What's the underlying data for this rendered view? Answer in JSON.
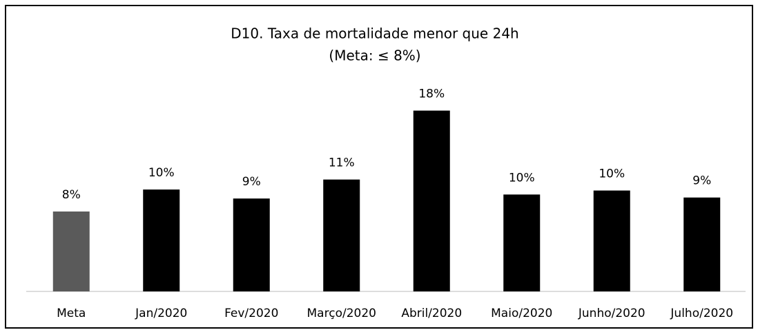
{
  "chart_data": {
    "type": "bar",
    "title": "D10. Taxa de mortalidade menor que 24h",
    "subtitle": "(Meta: ≤ 8%)",
    "categories": [
      "Meta",
      "Jan/2020",
      "Fev/2020",
      "Março/2020",
      "Abril/2020",
      "Maio/2020",
      "Junho/2020",
      "Julho/2020"
    ],
    "values": [
      8,
      10.2,
      9.3,
      11.2,
      18.1,
      9.7,
      10.1,
      9.4
    ],
    "value_labels": [
      "8%",
      "10%",
      "9%",
      "11%",
      "18%",
      "10%",
      "10%",
      "9%"
    ],
    "colors": [
      "#5a5a5a",
      "#000000",
      "#000000",
      "#000000",
      "#000000",
      "#000000",
      "#000000",
      "#000000"
    ]
  }
}
